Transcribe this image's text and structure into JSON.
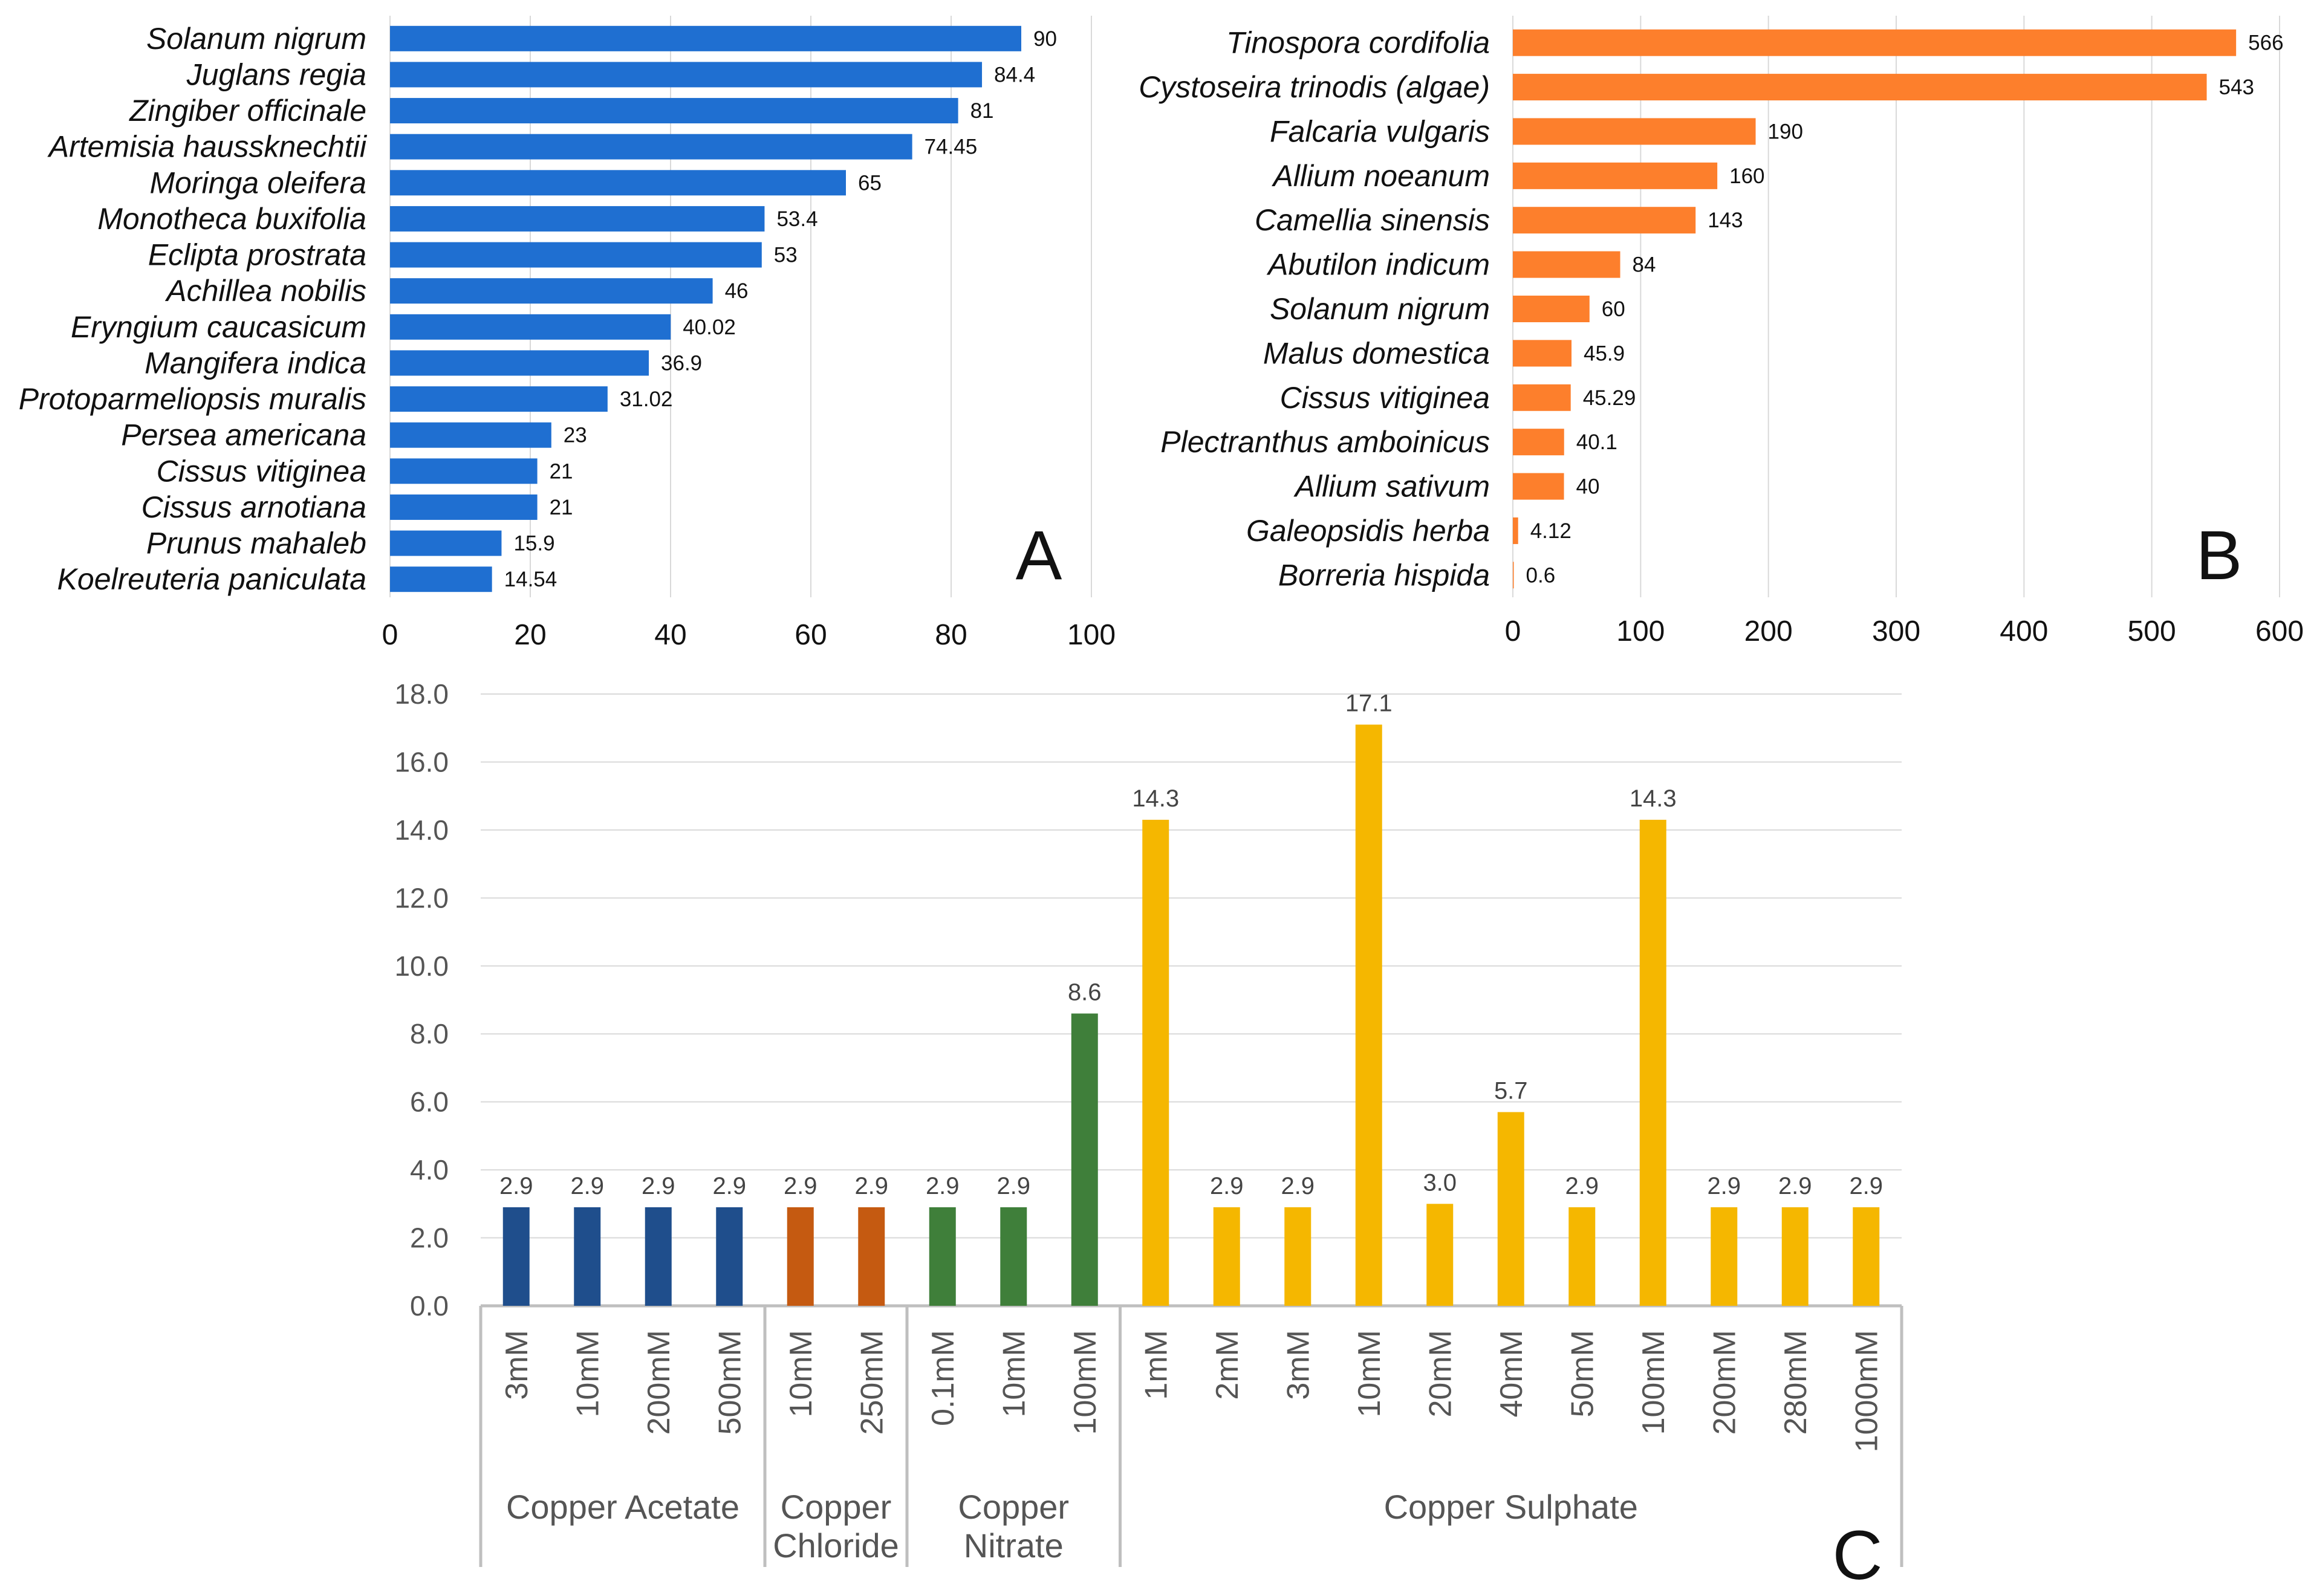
{
  "chart_data": [
    {
      "type": "bar",
      "orientation": "horizontal",
      "panel_label": "A",
      "categories": [
        "Solanum nigrum",
        "Juglans regia",
        "Zingiber officinale",
        "Artemisia haussknechtii",
        "Moringa oleifera",
        "Monotheca buxifolia",
        "Eclipta prostrata",
        "Achillea nobilis",
        "Eryngium caucasicum",
        "Mangifera indica",
        "Protoparmeliopsis muralis",
        "Persea americana",
        "Cissus vitiginea",
        "Cissus arnotiana",
        "Prunus mahaleb",
        "Koelreuteria paniculata"
      ],
      "values": [
        90,
        84.4,
        81,
        74.45,
        65,
        53.4,
        53,
        46,
        40.02,
        36.9,
        31.02,
        23,
        21,
        21,
        15.9,
        14.54
      ],
      "value_labels": [
        "90",
        "84.4",
        "81",
        "74.45",
        "65",
        "53.4",
        "53",
        "46",
        "40.02",
        "36.9",
        "31.02",
        "23",
        "21",
        "21",
        "15.9",
        "14.54"
      ],
      "xlim": [
        0,
        100
      ],
      "xticks": [
        "0",
        "20",
        "40",
        "60",
        "80",
        "100"
      ],
      "color": "#1f6fd1",
      "grid": true
    },
    {
      "type": "bar",
      "orientation": "horizontal",
      "panel_label": "B",
      "categories": [
        "Tinospora cordifolia",
        "Cystoseira trinodis (algae)",
        "Falcaria vulgaris",
        "Allium noeanum",
        "Camellia sinensis",
        "Abutilon indicum",
        "Solanum nigrum",
        "Malus domestica",
        "Cissus vitiginea",
        "Plectranthus amboinicus",
        "Allium sativum",
        "Galeopsidis herba",
        "Borreria hispida"
      ],
      "values": [
        566,
        543,
        190,
        160,
        143,
        84,
        60,
        45.9,
        45.29,
        40.1,
        40,
        4.12,
        0.6
      ],
      "value_labels": [
        "566",
        "543",
        "190",
        "160",
        "143",
        "84",
        "60",
        "45.9",
        "45.29",
        "40.1",
        "40",
        "4.12",
        "0.6"
      ],
      "xlim": [
        0,
        600
      ],
      "xticks": [
        "0",
        "100",
        "200",
        "300",
        "400",
        "500",
        "600"
      ],
      "color": "#fd7f2c",
      "grid": true
    },
    {
      "type": "bar",
      "orientation": "vertical",
      "panel_label": "C",
      "ylim": [
        0,
        18
      ],
      "yticks": [
        "0.0",
        "2.0",
        "4.0",
        "6.0",
        "8.0",
        "10.0",
        "12.0",
        "14.0",
        "16.0",
        "18.0"
      ],
      "grid": true,
      "groups": [
        {
          "name_lines": [
            "Copper Acetate"
          ],
          "color": "#1f4e8c",
          "categories": [
            "3mM",
            "10mM",
            "200mM",
            "500mM"
          ],
          "values": [
            2.9,
            2.9,
            2.9,
            2.9
          ],
          "value_labels": [
            "2.9",
            "2.9",
            "2.9",
            "2.9"
          ]
        },
        {
          "name_lines": [
            "Copper",
            "Chloride"
          ],
          "color": "#c55a11",
          "categories": [
            "10mM",
            "250mM"
          ],
          "values": [
            2.9,
            2.9
          ],
          "value_labels": [
            "2.9",
            "2.9"
          ]
        },
        {
          "name_lines": [
            "Copper",
            "Nitrate"
          ],
          "color": "#3f7f3a",
          "categories": [
            "0.1mM",
            "10mM",
            "100mM"
          ],
          "values": [
            2.9,
            2.9,
            8.6
          ],
          "value_labels": [
            "2.9",
            "2.9",
            "8.6"
          ]
        },
        {
          "name_lines": [
            "Copper Sulphate"
          ],
          "color": "#f5b700",
          "categories": [
            "1mM",
            "2mM",
            "3mM",
            "10mM",
            "20mM",
            "40mM",
            "50mM",
            "100mM",
            "200mM",
            "280mM",
            "1000mM"
          ],
          "values": [
            14.3,
            2.9,
            2.9,
            17.1,
            3.0,
            5.7,
            2.9,
            14.3,
            2.9,
            2.9,
            2.9
          ],
          "value_labels": [
            "14.3",
            "2.9",
            "2.9",
            "17.1",
            "3.0",
            "5.7",
            "2.9",
            "14.3",
            "2.9",
            "2.9",
            "2.9"
          ]
        }
      ]
    }
  ]
}
